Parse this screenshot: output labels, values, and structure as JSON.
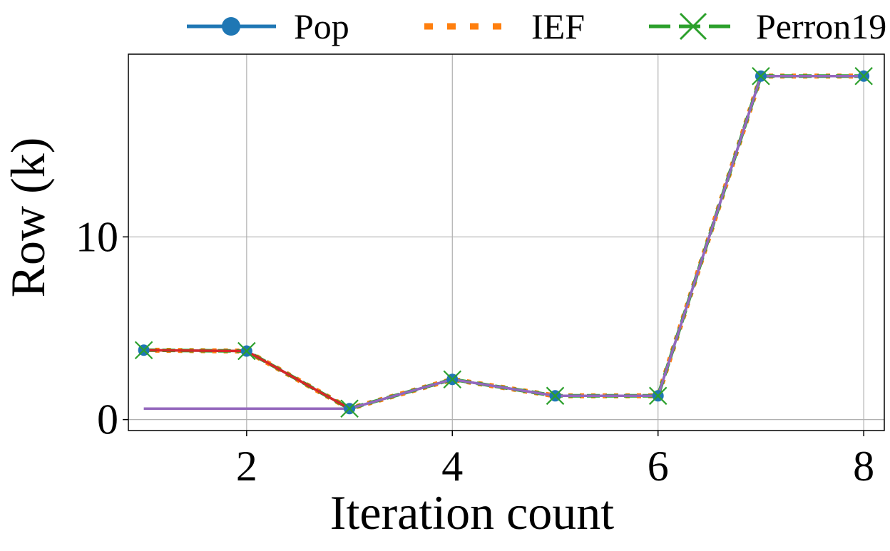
{
  "chart_data": {
    "type": "line",
    "title": "",
    "xlabel": "Iteration count",
    "ylabel": "Row (k)",
    "xlim": [
      0.85,
      8.2
    ],
    "ylim": [
      -0.6,
      20
    ],
    "x_ticks": [
      2,
      4,
      6,
      8
    ],
    "y_ticks": [
      0,
      10
    ],
    "grid": true,
    "legend_position": "top, outside plot",
    "x": [
      1,
      2,
      3,
      4,
      5,
      6,
      7,
      8
    ],
    "series": [
      {
        "name": "Pop",
        "color": "#1f77b4",
        "style": "solid",
        "marker": "circle",
        "values": [
          3.8,
          3.75,
          0.6,
          2.2,
          1.3,
          1.3,
          18.8,
          18.8
        ]
      },
      {
        "name": "IEF",
        "color": "#ff7f0e",
        "style": "dotted",
        "marker": "none",
        "values": [
          3.8,
          3.75,
          0.6,
          2.2,
          1.3,
          1.3,
          18.8,
          18.8
        ]
      },
      {
        "name": "Perron19",
        "color": "#2ca02c",
        "style": "dashed",
        "marker": "x",
        "values": [
          3.8,
          3.75,
          0.6,
          2.2,
          1.3,
          1.3,
          18.8,
          18.8
        ]
      },
      {
        "color": "#d62728",
        "style": "solid",
        "marker": "none",
        "x": [
          1,
          2,
          3
        ],
        "values": [
          3.8,
          3.75,
          0.6
        ]
      },
      {
        "color": "#9467bd",
        "style": "solid",
        "marker": "none",
        "x": [
          1,
          2,
          3,
          4,
          5,
          6,
          7,
          8
        ],
        "values": [
          0.6,
          0.6,
          0.6,
          2.2,
          1.3,
          1.3,
          18.8,
          18.8
        ]
      }
    ]
  }
}
